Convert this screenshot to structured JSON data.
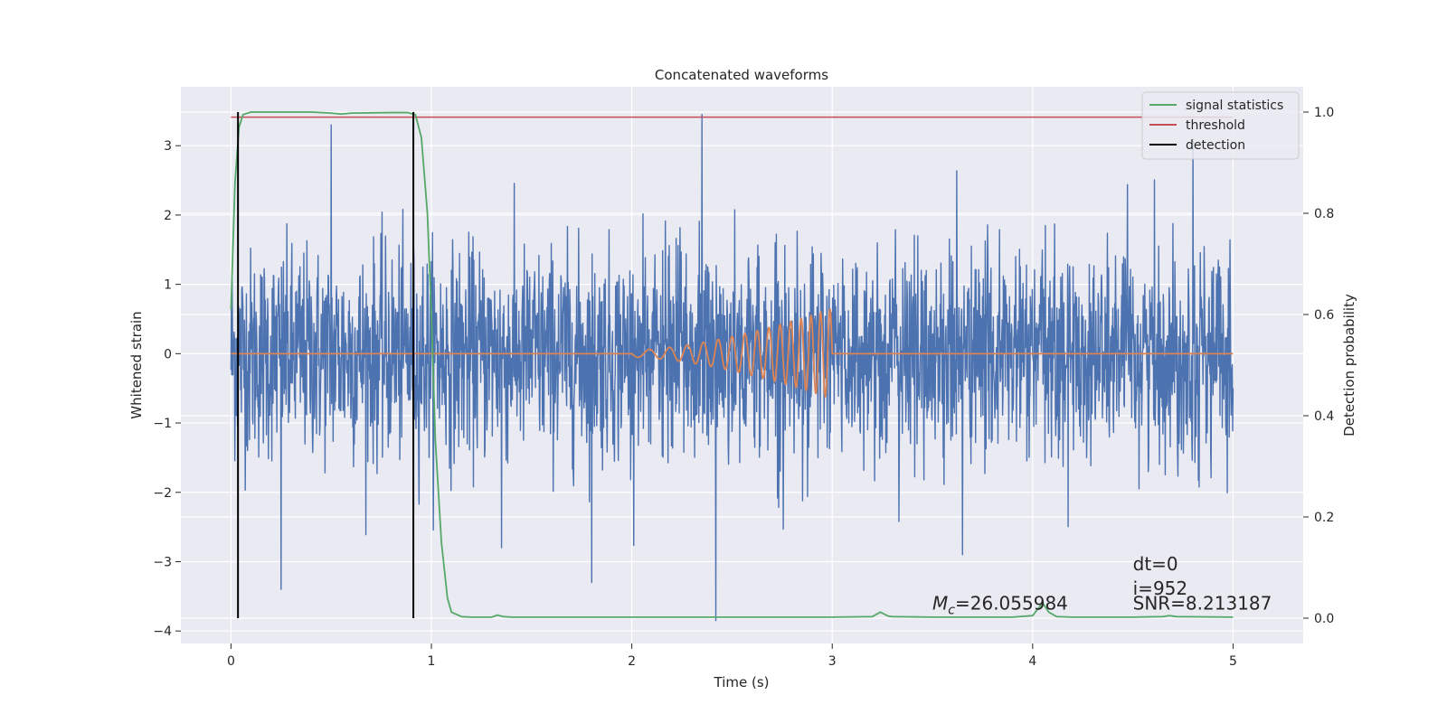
{
  "chart_data": {
    "type": "line",
    "title": "Concatenated waveforms",
    "xlabel": "Time (s)",
    "ylabel": "Whitened strain",
    "y2label": "Detection probability",
    "xlim": [
      -0.25,
      5.35
    ],
    "ylim": [
      -4.18,
      3.85
    ],
    "y2lim": [
      -0.05,
      1.05
    ],
    "xticks": [
      0,
      1,
      2,
      3,
      4,
      5
    ],
    "yticks": [
      -4,
      -3,
      -2,
      -1,
      0,
      1,
      2,
      3
    ],
    "y2ticks": [
      0.0,
      0.2,
      0.4,
      0.6,
      0.8,
      1.0
    ],
    "y2tick_labels": [
      "0.0",
      "0.2",
      "0.4",
      "0.6",
      "0.8",
      "1.0"
    ],
    "ytick_labels": [
      "−4",
      "−3",
      "−2",
      "−1",
      "0",
      "1",
      "2",
      "3"
    ],
    "grid": true,
    "legend_position": "top-right",
    "series": [
      {
        "key": "strain",
        "axis": "left",
        "color": "#4c72b0",
        "description_type": "noise",
        "x_range": [
          0,
          5
        ],
        "amplitude_sigma": 0.75,
        "peaks": [
          {
            "x": 0.25,
            "y": -3.4
          },
          {
            "x": 0.5,
            "y": 3.3
          },
          {
            "x": 1.35,
            "y": -2.8
          },
          {
            "x": 1.8,
            "y": -3.3
          },
          {
            "x": 2.35,
            "y": 3.45
          },
          {
            "x": 2.42,
            "y": -3.85
          },
          {
            "x": 3.65,
            "y": -2.9
          },
          {
            "x": 4.8,
            "y": 3.1
          }
        ]
      },
      {
        "key": "template",
        "axis": "left",
        "color": "#dd8452",
        "description_type": "chirp",
        "x": [
          0,
          2,
          3,
          5
        ],
        "chirp_start": 2.0,
        "chirp_end": 3.0,
        "chirp_amplitude": [
          0.05,
          0.65
        ],
        "chirp_frequency_hz": [
          8,
          22
        ]
      },
      {
        "key": "signal",
        "name": "signal statistics",
        "axis": "right",
        "color": "#55a868",
        "x": [
          0.0,
          0.02,
          0.04,
          0.06,
          0.1,
          0.2,
          0.4,
          0.5,
          0.55,
          0.6,
          0.8,
          0.88,
          0.92,
          0.95,
          0.98,
          1.0,
          1.02,
          1.05,
          1.08,
          1.1,
          1.15,
          1.2,
          1.3,
          1.33,
          1.36,
          1.4,
          1.6,
          2.0,
          2.5,
          3.0,
          3.2,
          3.24,
          3.28,
          3.3,
          3.5,
          3.9,
          4.0,
          4.05,
          4.08,
          4.12,
          4.2,
          4.5,
          4.65,
          4.68,
          4.72,
          5.0
        ],
        "values": [
          0.61,
          0.86,
          0.97,
          0.995,
          1.0,
          1.0,
          1.0,
          0.998,
          0.996,
          0.998,
          0.999,
          0.999,
          0.995,
          0.95,
          0.8,
          0.6,
          0.35,
          0.15,
          0.04,
          0.012,
          0.003,
          0.002,
          0.002,
          0.006,
          0.003,
          0.002,
          0.002,
          0.002,
          0.002,
          0.002,
          0.003,
          0.012,
          0.004,
          0.003,
          0.002,
          0.002,
          0.005,
          0.03,
          0.012,
          0.003,
          0.002,
          0.002,
          0.003,
          0.005,
          0.003,
          0.002
        ]
      },
      {
        "key": "threshold",
        "name": "threshold",
        "axis": "right",
        "color": "#c44e52",
        "x": [
          0,
          5
        ],
        "values": [
          0.99,
          0.99
        ]
      },
      {
        "key": "detection",
        "name": "detection",
        "axis": "right",
        "color": "#000000",
        "x": [
          0.035,
          0.91
        ],
        "from": 0.0,
        "to": 1.0
      }
    ],
    "legend": [
      "signal statistics",
      "threshold",
      "detection"
    ],
    "annotations": [
      {
        "key": "dt",
        "text": "dt=0",
        "x": 4.5,
        "y": 0.095
      },
      {
        "key": "i",
        "text": "i=952",
        "x": 4.5,
        "y": 0.046
      },
      {
        "key": "snr",
        "text": "SNR=8.213187",
        "x": 4.5,
        "y": 0.017
      },
      {
        "key": "mc",
        "text_italic": "M",
        "text_sub": "c",
        "text_rest": "=26.055984",
        "x": 3.5,
        "y": 0.017
      }
    ]
  }
}
